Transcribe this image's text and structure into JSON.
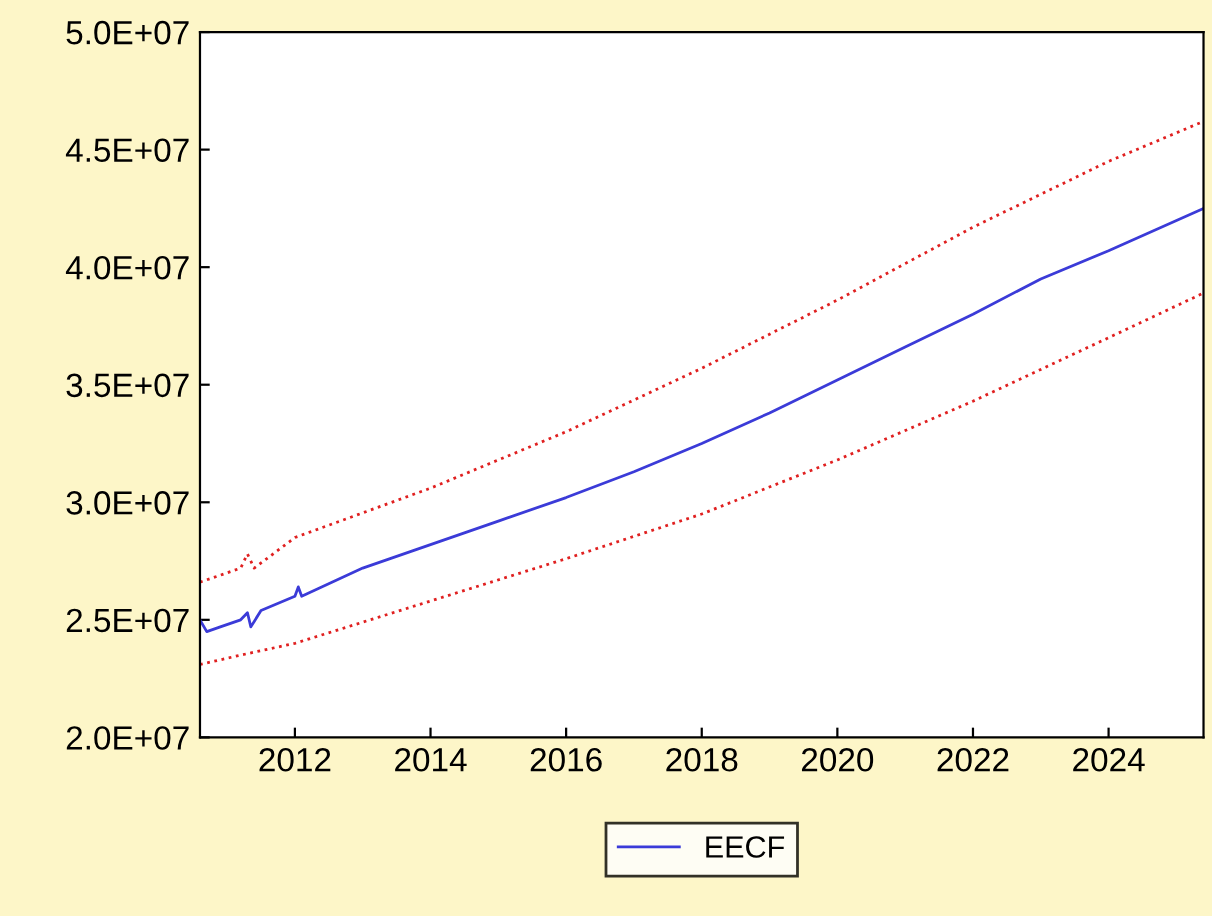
{
  "chart_data": {
    "type": "line",
    "xlim": [
      2010.6,
      2025.4
    ],
    "xticks": [
      2012,
      2014,
      2016,
      2018,
      2020,
      2022,
      2024
    ],
    "ylim": [
      20000000,
      50000000
    ],
    "yticks": [
      {
        "value": 20000000,
        "label": "2.0E+07"
      },
      {
        "value": 25000000,
        "label": "2.5E+07"
      },
      {
        "value": 30000000,
        "label": "3.0E+07"
      },
      {
        "value": 35000000,
        "label": "3.5E+07"
      },
      {
        "value": 40000000,
        "label": "4.0E+07"
      },
      {
        "value": 45000000,
        "label": "4.5E+07"
      },
      {
        "value": 50000000,
        "label": "5.0E+07"
      }
    ],
    "grid": false,
    "legend": "bottom",
    "series": [
      {
        "name": "EECF",
        "color": "#3b3bd8",
        "line_style": "solid",
        "x": [
          2010.6,
          2010.7,
          2010.9,
          2011.2,
          2011.3,
          2011.35,
          2011.5,
          2012.0,
          2012.05,
          2012.1,
          2013,
          2014,
          2015,
          2016,
          2017,
          2018,
          2019,
          2020,
          2021,
          2022,
          2023,
          2024,
          2025.4
        ],
        "values": [
          25000000,
          24500000,
          24700000,
          25000000,
          25300000,
          24700000,
          25400000,
          26000000,
          26400000,
          26000000,
          27200000,
          28200000,
          29200000,
          30200000,
          31300000,
          32500000,
          33800000,
          35200000,
          36600000,
          38000000,
          39500000,
          40700000,
          42500000
        ]
      },
      {
        "color": "#e02020",
        "line_style": "dotted",
        "x": [
          2010.6,
          2011.2,
          2011.3,
          2011.4,
          2012,
          2014,
          2016,
          2018,
          2020,
          2022,
          2024,
          2025.4
        ],
        "values": [
          26600000,
          27200000,
          27800000,
          27200000,
          28500000,
          30600000,
          33000000,
          35700000,
          38600000,
          41700000,
          44500000,
          46200000
        ]
      },
      {
        "color": "#e02020",
        "line_style": "dotted",
        "x": [
          2010.6,
          2011.2,
          2012,
          2014,
          2016,
          2018,
          2020,
          2022,
          2024,
          2025.4
        ],
        "values": [
          23100000,
          23500000,
          24000000,
          25800000,
          27600000,
          29500000,
          31800000,
          34300000,
          37000000,
          38900000
        ]
      }
    ]
  }
}
